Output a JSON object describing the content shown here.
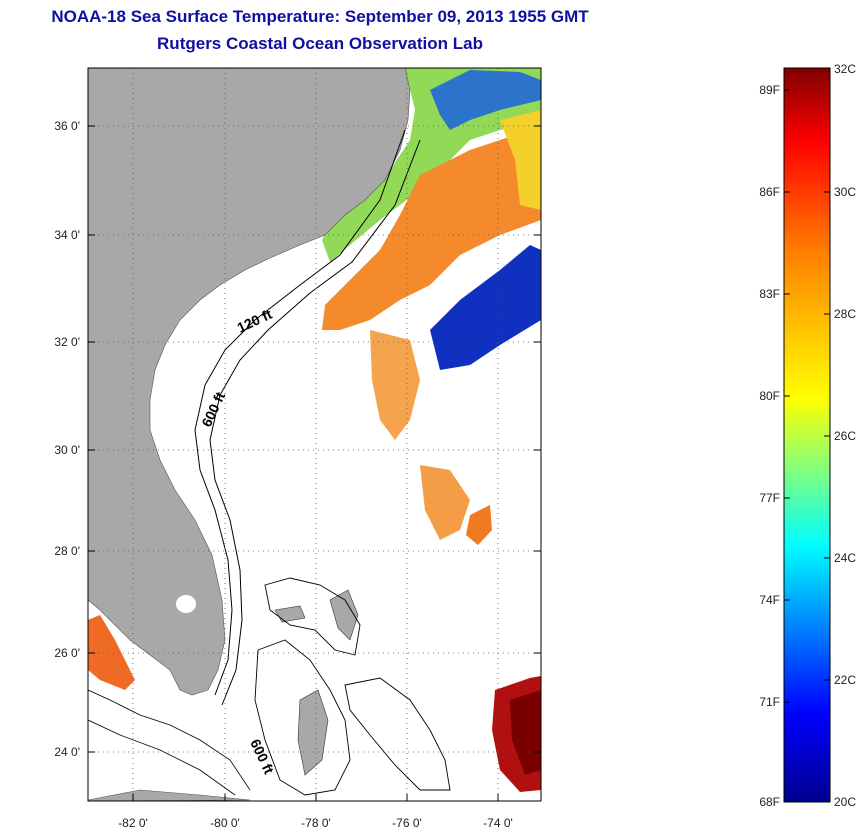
{
  "title": {
    "line1": "NOAA-18 Sea Surface Temperature:  September 09, 2013 1955 GMT",
    "line2": "Rutgers Coastal Ocean Observation Lab"
  },
  "axes": {
    "lat_labels": [
      "36 0'",
      "34 0'",
      "32 0'",
      "30 0'",
      "28 0'",
      "26 0'",
      "24 0'"
    ],
    "lon_labels": [
      "-82 0'",
      "-80 0'",
      "-78 0'",
      "-76 0'",
      "-74 0'"
    ]
  },
  "contours": {
    "label_120": "120 ft",
    "label_600a": "600 ft",
    "label_600b": "600 ft"
  },
  "colorbar": {
    "f_labels": [
      "89F",
      "86F",
      "83F",
      "80F",
      "77F",
      "74F",
      "71F",
      "68F"
    ],
    "c_labels": [
      "32C",
      "30C",
      "28C",
      "26C",
      "24C",
      "22C",
      "20C"
    ]
  },
  "colors": {
    "land": "#a8a8a8",
    "title": "#1010a0",
    "warm": "#f08a2a",
    "cool": "#1060d0"
  }
}
